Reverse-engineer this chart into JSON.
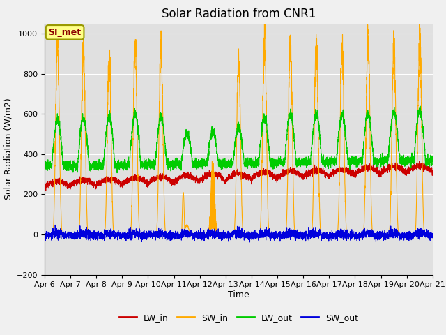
{
  "title": "Solar Radiation from CNR1",
  "xlabel": "Time",
  "ylabel": "Solar Radiation (W/m2)",
  "ylim": [
    -200,
    1050
  ],
  "yticks": [
    -200,
    0,
    200,
    400,
    600,
    800,
    1000
  ],
  "x_labels": [
    "Apr 6",
    "Apr 7",
    "Apr 8",
    "Apr 9",
    "Apr 10",
    "Apr 11",
    "Apr 12",
    "Apr 13",
    "Apr 14",
    "Apr 15",
    "Apr 16",
    "Apr 17",
    "Apr 18",
    "Apr 19",
    "Apr 20",
    "Apr 21"
  ],
  "colors": {
    "LW_in": "#cc0000",
    "SW_in": "#ffaa00",
    "LW_out": "#00cc00",
    "SW_out": "#0000dd"
  },
  "legend_label": "SI_met",
  "legend_label_color": "#8b0000",
  "legend_box_facecolor": "#ffff88",
  "legend_box_edgecolor": "#999900",
  "fig_facecolor": "#f0f0f0",
  "plot_facecolor": "#e0e0e0",
  "grid_color": "#ffffff",
  "title_fontsize": 12,
  "axis_label_fontsize": 9,
  "tick_fontsize": 8,
  "n_days": 15,
  "pts_per_day": 288
}
